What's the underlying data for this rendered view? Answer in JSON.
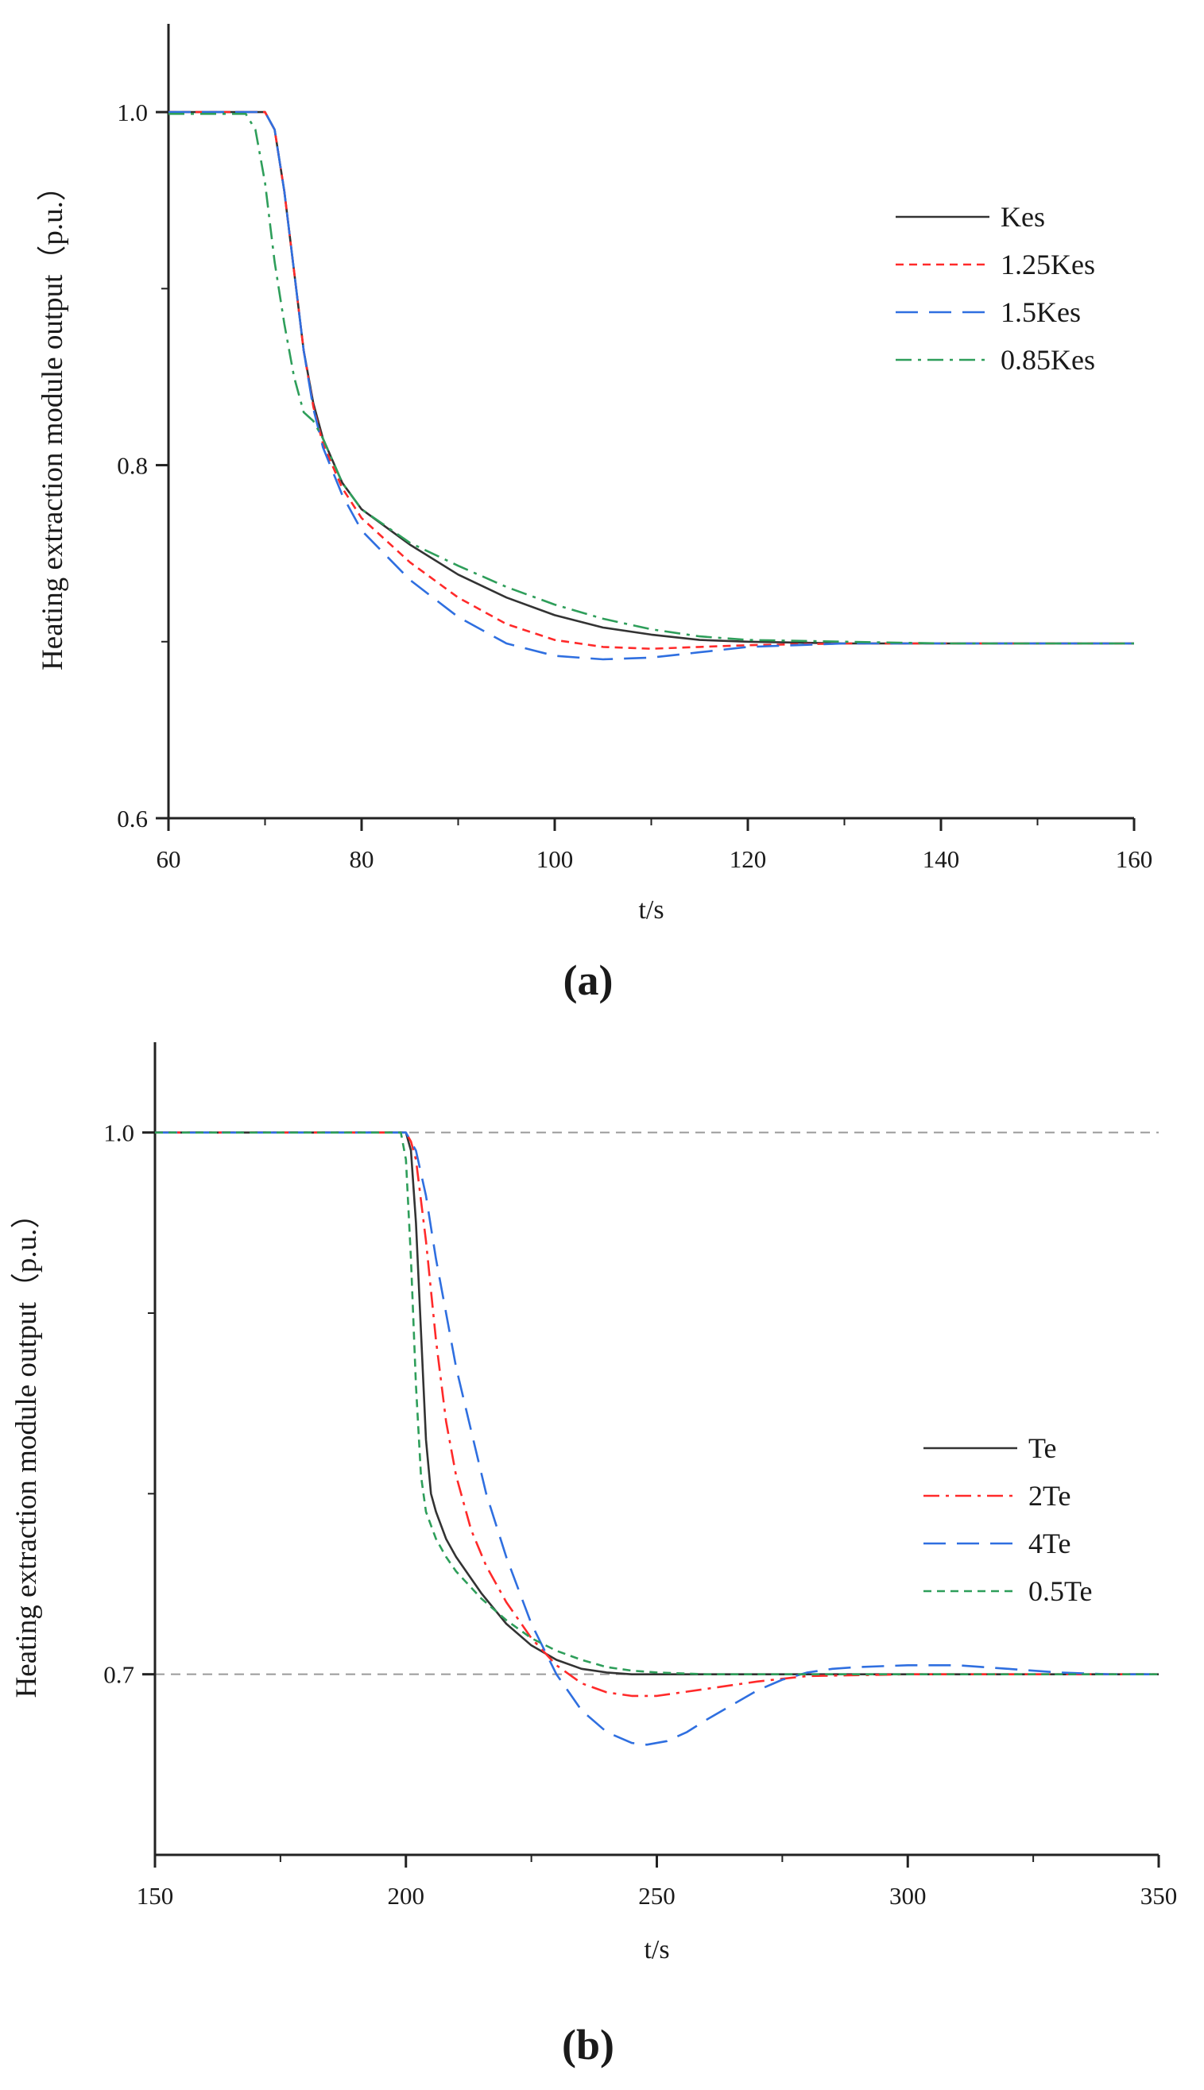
{
  "chart_data": [
    {
      "type": "line",
      "panel_label": "(a)",
      "xlabel": "t/s",
      "ylabel": "Heating extraction module output（p.u.）",
      "xlim": [
        60,
        160
      ],
      "ylim": [
        0.6,
        1.05
      ],
      "xticks": [
        "60",
        "80",
        "100",
        "120",
        "140",
        "160"
      ],
      "yticks": [
        "0.6",
        "0.8",
        "1.0"
      ],
      "ytick_values": [
        0.6,
        0.8,
        1.0
      ],
      "reference_lines": [],
      "legend_position": "top-right",
      "series": [
        {
          "name": "Kes",
          "color": "#333333",
          "dash": "solid",
          "x": [
            60,
            70,
            71,
            72,
            73,
            74,
            75,
            76,
            78,
            80,
            85,
            90,
            95,
            100,
            105,
            110,
            115,
            120,
            130,
            140,
            150,
            160
          ],
          "y": [
            1.0,
            1.0,
            0.99,
            0.955,
            0.91,
            0.865,
            0.835,
            0.815,
            0.79,
            0.775,
            0.755,
            0.738,
            0.725,
            0.715,
            0.708,
            0.704,
            0.701,
            0.7,
            0.699,
            0.699,
            0.699,
            0.699
          ]
        },
        {
          "name": "1.25Kes",
          "color": "#ff2a2a",
          "dash": "short-dash",
          "x": [
            60,
            70,
            71,
            72,
            73,
            74,
            75,
            76,
            78,
            80,
            85,
            90,
            95,
            100,
            105,
            110,
            115,
            120,
            130,
            140,
            150,
            160
          ],
          "y": [
            1.0,
            1.0,
            0.99,
            0.955,
            0.91,
            0.865,
            0.833,
            0.812,
            0.787,
            0.77,
            0.745,
            0.725,
            0.71,
            0.701,
            0.697,
            0.696,
            0.697,
            0.698,
            0.699,
            0.699,
            0.699,
            0.699
          ]
        },
        {
          "name": "1.5Kes",
          "color": "#2f6fe0",
          "dash": "long-dash",
          "x": [
            60,
            70,
            71,
            72,
            73,
            74,
            75,
            76,
            78,
            80,
            85,
            90,
            95,
            100,
            105,
            110,
            115,
            120,
            130,
            140,
            150,
            160
          ],
          "y": [
            1.0,
            1.0,
            0.99,
            0.955,
            0.91,
            0.865,
            0.832,
            0.81,
            0.783,
            0.763,
            0.735,
            0.714,
            0.699,
            0.692,
            0.69,
            0.691,
            0.694,
            0.697,
            0.699,
            0.699,
            0.699,
            0.699
          ]
        },
        {
          "name": "0.85Kes",
          "color": "#2e9e5a",
          "dash": "dash-dot",
          "x": [
            60,
            68,
            69,
            70,
            71,
            72,
            73,
            74,
            75,
            76,
            78,
            80,
            85,
            90,
            95,
            100,
            105,
            110,
            115,
            120,
            130,
            140,
            150,
            160
          ],
          "y": [
            0.999,
            0.999,
            0.99,
            0.96,
            0.915,
            0.88,
            0.85,
            0.83,
            0.825,
            0.815,
            0.79,
            0.775,
            0.756,
            0.743,
            0.731,
            0.721,
            0.713,
            0.707,
            0.703,
            0.701,
            0.7,
            0.699,
            0.699,
            0.699
          ]
        }
      ]
    },
    {
      "type": "line",
      "panel_label": "(b)",
      "xlabel": "t/s",
      "ylabel": "Heating extraction module output（p.u.）",
      "xlim": [
        150,
        350
      ],
      "ylim": [
        0.6,
        1.05
      ],
      "xticks": [
        "150",
        "200",
        "250",
        "300",
        "350"
      ],
      "yticks": [
        "0.7",
        "1.0"
      ],
      "ytick_values": [
        0.7,
        1.0
      ],
      "reference_lines": [
        1.0,
        0.7
      ],
      "legend_position": "top-right",
      "series": [
        {
          "name": "Te",
          "color": "#333333",
          "dash": "solid",
          "x": [
            150,
            200,
            201,
            202,
            203,
            204,
            205,
            206,
            208,
            210,
            215,
            220,
            225,
            230,
            235,
            240,
            245,
            250,
            260,
            280,
            300,
            350
          ],
          "y": [
            1.0,
            1.0,
            0.99,
            0.95,
            0.89,
            0.83,
            0.8,
            0.79,
            0.775,
            0.765,
            0.745,
            0.728,
            0.716,
            0.708,
            0.703,
            0.701,
            0.7,
            0.7,
            0.7,
            0.7,
            0.7,
            0.7
          ]
        },
        {
          "name": "2Te",
          "color": "#ff2a2a",
          "dash": "dash-dot",
          "x": [
            150,
            200,
            201,
            202,
            204,
            206,
            208,
            210,
            213,
            216,
            220,
            225,
            230,
            235,
            240,
            245,
            250,
            255,
            260,
            270,
            280,
            300,
            350
          ],
          "y": [
            1.0,
            1.0,
            0.995,
            0.985,
            0.94,
            0.885,
            0.84,
            0.81,
            0.78,
            0.76,
            0.74,
            0.72,
            0.705,
            0.695,
            0.69,
            0.688,
            0.688,
            0.69,
            0.692,
            0.696,
            0.699,
            0.7,
            0.7
          ]
        },
        {
          "name": "4Te",
          "color": "#2f6fe0",
          "dash": "long-dash",
          "x": [
            150,
            200,
            202,
            204,
            206,
            208,
            210,
            213,
            216,
            220,
            225,
            230,
            235,
            240,
            245,
            248,
            252,
            256,
            260,
            265,
            270,
            275,
            280,
            285,
            290,
            300,
            310,
            320,
            330,
            340,
            350
          ],
          "y": [
            1.0,
            1.0,
            0.99,
            0.965,
            0.93,
            0.9,
            0.87,
            0.835,
            0.8,
            0.765,
            0.728,
            0.7,
            0.68,
            0.668,
            0.662,
            0.661,
            0.663,
            0.668,
            0.675,
            0.683,
            0.691,
            0.697,
            0.701,
            0.703,
            0.704,
            0.705,
            0.705,
            0.703,
            0.701,
            0.7,
            0.7
          ]
        },
        {
          "name": "0.5Te",
          "color": "#2e9e5a",
          "dash": "short-dash",
          "x": [
            150,
            199,
            200,
            201,
            202,
            203,
            204,
            206,
            208,
            210,
            215,
            220,
            225,
            230,
            235,
            240,
            245,
            250,
            260,
            270,
            280,
            300,
            350
          ],
          "y": [
            1.0,
            1.0,
            0.985,
            0.93,
            0.86,
            0.81,
            0.79,
            0.775,
            0.765,
            0.757,
            0.742,
            0.73,
            0.72,
            0.713,
            0.708,
            0.704,
            0.702,
            0.701,
            0.7,
            0.7,
            0.7,
            0.7,
            0.7
          ]
        }
      ]
    }
  ]
}
